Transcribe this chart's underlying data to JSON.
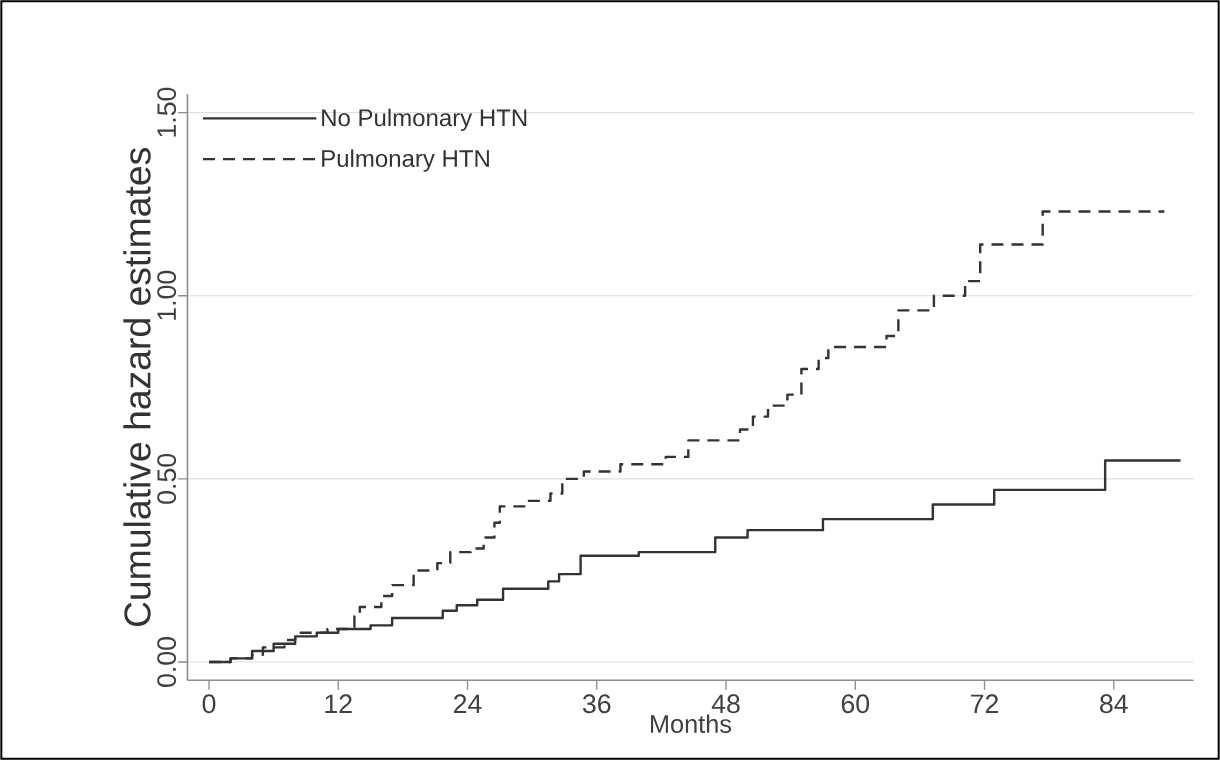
{
  "chart_data": {
    "type": "step",
    "xlabel": "Months",
    "ylabel": "Cumulative hazard estimates",
    "series": [
      {
        "name": "No Pulmonary HTN",
        "color": "#333333",
        "line_style": "solid",
        "x": [
          0,
          2,
          4,
          6,
          8,
          10,
          12,
          15,
          17,
          21.7,
          23,
          24.9,
          27.3,
          31.5,
          32.5,
          34.5,
          39.9,
          47,
          50,
          57,
          67.2,
          72.9,
          83.2,
          90.2
        ],
        "values": [
          0,
          0.01,
          0.03,
          0.05,
          0.07,
          0.08,
          0.09,
          0.1,
          0.12,
          0.14,
          0.155,
          0.17,
          0.2,
          0.22,
          0.24,
          0.29,
          0.3,
          0.34,
          0.36,
          0.39,
          0.43,
          0.47,
          0.55,
          0.55
        ]
      },
      {
        "name": "Pulmonary HTN",
        "color": "#333333",
        "line_style": "dashed",
        "x": [
          0,
          2,
          4,
          5,
          7,
          8,
          10,
          11,
          12.8,
          13.5,
          14,
          16,
          17,
          19,
          21.2,
          22.4,
          24.3,
          25.5,
          26.5,
          27,
          29.5,
          31.7,
          32.8,
          34.8,
          38.2,
          42.4,
          44.5,
          49.3,
          50.5,
          51.9,
          53.7,
          55,
          56.6,
          57.5,
          62.9,
          64,
          67.3,
          70.2,
          71.6,
          77.4,
          88.7
        ],
        "values": [
          0,
          0.01,
          0.02,
          0.04,
          0.06,
          0.08,
          0.08,
          0.09,
          0.095,
          0.13,
          0.15,
          0.18,
          0.21,
          0.25,
          0.27,
          0.3,
          0.31,
          0.34,
          0.38,
          0.425,
          0.44,
          0.46,
          0.5,
          0.52,
          0.54,
          0.56,
          0.605,
          0.635,
          0.67,
          0.7,
          0.73,
          0.8,
          0.83,
          0.86,
          0.89,
          0.96,
          1.0,
          1.04,
          1.14,
          1.23,
          1.23
        ]
      }
    ],
    "xlim": [
      -2,
      91.4
    ],
    "ylim": [
      -0.05,
      1.55
    ],
    "xticks": [
      0,
      12,
      24,
      36,
      48,
      60,
      72,
      84
    ],
    "yticks": [
      {
        "value": 0,
        "label": "0.00"
      },
      {
        "value": 0.5,
        "label": "0.50"
      },
      {
        "value": 1,
        "label": "1.00"
      },
      {
        "value": 1.5,
        "label": "1.50"
      }
    ],
    "grid": "y",
    "legend": "top left"
  }
}
